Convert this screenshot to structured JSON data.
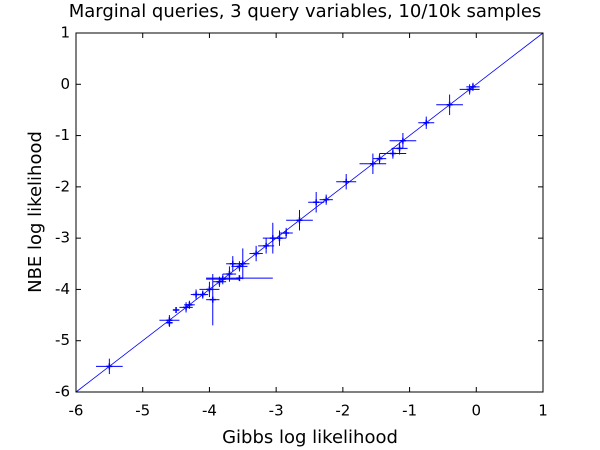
{
  "chart_data": {
    "type": "scatter",
    "title": "Marginal queries, 3 query variables, 10/10k samples",
    "x_label": "Gibbs log likelihood",
    "y_label": "NBE log likelihood",
    "xlim": [
      -6,
      1
    ],
    "ylim": [
      -6,
      1
    ],
    "xticks": [
      -6,
      -5,
      -4,
      -3,
      -2,
      -1,
      0,
      1
    ],
    "yticks": [
      -6,
      -5,
      -4,
      -3,
      -2,
      -1,
      0,
      1
    ],
    "identity_line": true,
    "marker": "+",
    "series": [
      {
        "color": "#0000ff",
        "x": [
          -5.5,
          -4.6,
          -4.6,
          -4.5,
          -4.35,
          -4.3,
          -4.2,
          -4.1,
          -4.0,
          -3.95,
          -3.85,
          -3.8,
          -3.7,
          -3.55,
          -3.65,
          -3.55,
          -3.5,
          -3.3,
          -3.15,
          -3.05,
          -2.95,
          -2.85,
          -2.65,
          -2.4,
          -2.25,
          -1.95,
          -1.55,
          -1.45,
          -1.25,
          -1.15,
          -1.1,
          -0.75,
          -0.4,
          -0.1,
          -0.05
        ],
        "values": [
          -5.5,
          -4.6,
          -4.65,
          -4.4,
          -4.35,
          -4.3,
          -4.1,
          -4.1,
          -4.0,
          -4.2,
          -3.85,
          -3.8,
          -3.7,
          -3.78,
          -3.5,
          -3.55,
          -3.5,
          -3.3,
          -3.15,
          -3.0,
          -3.0,
          -2.9,
          -2.65,
          -2.3,
          -2.25,
          -1.9,
          -1.55,
          -1.45,
          -1.35,
          -1.25,
          -1.1,
          -0.75,
          -0.4,
          -0.1,
          -0.05
        ],
        "xerr": [
          0.2,
          0.15,
          0.05,
          0.05,
          0.1,
          0.08,
          0.08,
          0.08,
          0.15,
          0.1,
          0.1,
          0.25,
          0.1,
          0.5,
          0.1,
          0.12,
          0.1,
          0.1,
          0.12,
          0.15,
          0.1,
          0.1,
          0.2,
          0.12,
          0.1,
          0.15,
          0.2,
          0.1,
          0.2,
          0.12,
          0.2,
          0.12,
          0.2,
          0.15,
          0.1
        ],
        "yerr": [
          0.15,
          0.1,
          0.08,
          0.05,
          0.1,
          0.08,
          0.1,
          0.08,
          0.15,
          0.5,
          0.1,
          0.1,
          0.15,
          0.05,
          0.15,
          0.1,
          0.3,
          0.15,
          0.15,
          0.3,
          0.15,
          0.1,
          0.2,
          0.2,
          0.1,
          0.15,
          0.2,
          0.1,
          0.1,
          0.12,
          0.15,
          0.12,
          0.2,
          0.1,
          0.08
        ]
      }
    ]
  }
}
